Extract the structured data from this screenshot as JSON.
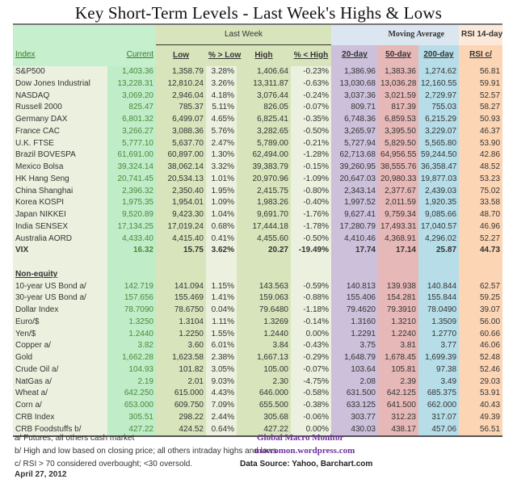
{
  "title": "Key Short-Term Levels -  Last Week's Highs & Lows",
  "header": {
    "last_week": "Last Week",
    "moving_average": "Moving Average",
    "rsi_group": "RSI 14-day",
    "columns": [
      "Index",
      "Current",
      "Low",
      "% > Low",
      "High",
      "% < High",
      "20-day",
      "50-day",
      "200-day",
      "RSI c/"
    ]
  },
  "equity_rows": [
    [
      "S&P500",
      "1,403.36",
      "1,358.79",
      "3.28%",
      "1,406.64",
      "-0.23%",
      "1,386.96",
      "1,383.36",
      "1,274.62",
      "56.81"
    ],
    [
      "Dow Jones Industrial",
      "13,228.31",
      "12,810.24",
      "3.26%",
      "13,311.87",
      "-0.63%",
      "13,030.68",
      "13,036.28",
      "12,160.55",
      "59.91"
    ],
    [
      "NASDAQ",
      "3,069.20",
      "2,946.04",
      "4.18%",
      "3,076.44",
      "-0.24%",
      "3,037.36",
      "3,021.59",
      "2,729.97",
      "52.57"
    ],
    [
      "Russell 2000",
      "825.47",
      "785.37",
      "5.11%",
      "826.05",
      "-0.07%",
      "809.71",
      "817.39",
      "755.03",
      "58.27"
    ],
    [
      "Germany DAX",
      "6,801.32",
      "6,499.07",
      "4.65%",
      "6,825.41",
      "-0.35%",
      "6,748.36",
      "6,859.53",
      "6,215.29",
      "50.93"
    ],
    [
      "France CAC",
      "3,266.27",
      "3,088.36",
      "5.76%",
      "3,282.65",
      "-0.50%",
      "3,265.97",
      "3,395.50",
      "3,229.07",
      "46.37"
    ],
    [
      "U.K. FTSE",
      "5,777.10",
      "5,637.70",
      "2.47%",
      "5,789.00",
      "-0.21%",
      "5,727.94",
      "5,829.50",
      "5,565.80",
      "53.90"
    ],
    [
      "Brazil BOVESPA",
      "61,691.00",
      "60,897.00",
      "1.30%",
      "62,494.00",
      "-1.28%",
      "62,713.68",
      "64,956.55",
      "59,244.50",
      "42.86"
    ],
    [
      "Mexico Bolsa",
      "39,324.14",
      "38,062.14",
      "3.32%",
      "39,383.79",
      "-0.15%",
      "39,260.95",
      "38,555.76",
      "36,358.47",
      "48.52"
    ],
    [
      "HK  Hang Seng",
      "20,741.45",
      "20,534.13",
      "1.01%",
      "20,970.96",
      "-1.09%",
      "20,647.03",
      "20,980.33",
      "19,877.03",
      "53.23"
    ],
    [
      "China Shanghai",
      "2,396.32",
      "2,350.40",
      "1.95%",
      "2,415.75",
      "-0.80%",
      "2,343.14",
      "2,377.67",
      "2,439.03",
      "75.02"
    ],
    [
      "Korea KOSPI",
      "1,975.35",
      "1,954.01",
      "1.09%",
      "1,983.26",
      "-0.40%",
      "1,997.52",
      "2,011.59",
      "1,920.35",
      "33.58"
    ],
    [
      "Japan NIKKEI",
      "9,520.89",
      "9,423.30",
      "1.04%",
      "9,691.70",
      "-1.76%",
      "9,627.41",
      "9,759.34",
      "9,085.66",
      "48.70"
    ],
    [
      "India SENSEX",
      "17,134.25",
      "17,019.24",
      "0.68%",
      "17,444.18",
      "-1.78%",
      "17,280.79",
      "17,493.31",
      "17,040.57",
      "46.96"
    ],
    [
      "Australia AORD",
      "4,433.40",
      "4,415.40",
      "0.41%",
      "4,455.60",
      "-0.50%",
      "4,410.46",
      "4,368.91",
      "4,296.02",
      "52.27"
    ],
    [
      "VIX",
      "16.32",
      "15.75",
      "3.62%",
      "20.27",
      "-19.49%",
      "17.74",
      "17.14",
      "25.87",
      "44.73"
    ]
  ],
  "non_equity_label": "Non-equity",
  "non_equity_rows": [
    [
      "10-year US Bond  a/",
      "142.719",
      "141.094",
      "1.15%",
      "143.563",
      "-0.59%",
      "140.813",
      "139.938",
      "140.844",
      "62.57"
    ],
    [
      "30-year US Bond  a/",
      "157.656",
      "155.469",
      "1.41%",
      "159.063",
      "-0.88%",
      "155.406",
      "154.281",
      "155.844",
      "59.25"
    ],
    [
      "Dollar Index",
      "78.7090",
      "78.6750",
      "0.04%",
      "79.6480",
      "-1.18%",
      "79.4620",
      "79.3910",
      "78.0490",
      "39.07"
    ],
    [
      "Euro/$",
      "1.3250",
      "1.3104",
      "1.11%",
      "1.3269",
      "-0.14%",
      "1.3160",
      "1.3210",
      "1.3509",
      "56.00"
    ],
    [
      "Yen/$",
      "1.2440",
      "1.2250",
      "1.55%",
      "1.2440",
      "0.00%",
      "1.2291",
      "1.2240",
      "1.2770",
      "60.66"
    ],
    [
      "Copper  a/",
      "3.82",
      "3.60",
      "6.01%",
      "3.84",
      "-0.43%",
      "3.75",
      "3.81",
      "3.77",
      "46.06"
    ],
    [
      "Gold",
      "1,662.28",
      "1,623.58",
      "2.38%",
      "1,667.13",
      "-0.29%",
      "1,648.79",
      "1,678.45",
      "1,699.39",
      "52.48"
    ],
    [
      "Crude Oil  a/",
      "104.93",
      "101.82",
      "3.05%",
      "105.00",
      "-0.07%",
      "103.64",
      "105.81",
      "97.38",
      "52.46"
    ],
    [
      "NatGas  a/",
      "2.19",
      "2.01",
      "9.03%",
      "2.30",
      "-4.75%",
      "2.08",
      "2.39",
      "3.49",
      "29.03"
    ],
    [
      "Wheat  a/",
      "642.250",
      "615.000",
      "4.43%",
      "646.000",
      "-0.58%",
      "631.500",
      "642.125",
      "685.375",
      "53.91"
    ],
    [
      "Corn  a/",
      "653.000",
      "609.750",
      "7.09%",
      "655.500",
      "-0.38%",
      "633.125",
      "641.500",
      "662.000",
      "40.43"
    ],
    [
      "CRB Index",
      "305.51",
      "298.22",
      "2.44%",
      "305.68",
      "-0.06%",
      "303.77",
      "312.23",
      "317.07",
      "49.39"
    ],
    [
      "CRB Foodstuffs  b/",
      "427.22",
      "424.52",
      "0.64%",
      "427.22",
      "0.00%",
      "430.03",
      "438.17",
      "457.06",
      "56.51"
    ]
  ],
  "footnotes": {
    "a": "a/  Futures; all others cash market",
    "b": "b/  High and low based on closing price;  all others intraday highs and lows",
    "c": "c/  RSI > 70 considered overbought;  <30 oversold.",
    "date": "April 27, 2012"
  },
  "branding": {
    "name": "Global Macro Monitor",
    "site": "macromon.wordpress.com",
    "source": "Data Source: Yahoo, Barchart.com"
  },
  "colors": {
    "low_high": "#d8e4bc",
    "current": "#c0ecc8",
    "ma20": "#ccc0da",
    "ma50": "#e6b8b7",
    "ma200": "#b7dee8",
    "rsi": "#fcd5b4",
    "brand": "#7030a0"
  }
}
